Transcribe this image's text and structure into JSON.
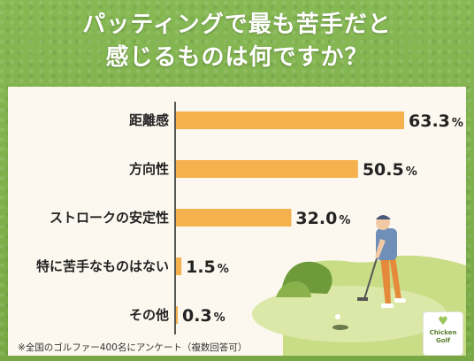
{
  "header": {
    "title_line1": "パッティングで最も苦手だと",
    "title_line2": "感じるものは何ですか？"
  },
  "footnote": "※全国のゴルファー400名にアンケート（複数回答可）",
  "logo": {
    "word1": "Chicken",
    "word2": "Golf",
    "glyph": "♥"
  },
  "colors": {
    "bar": "#f5b14d",
    "background": "#7fb04a",
    "panel": "#fdf8ef",
    "axis": "#222222"
  },
  "chart_data": {
    "type": "bar",
    "orientation": "horizontal",
    "categories": [
      "距離感",
      "方向性",
      "ストロークの安定性",
      "特に苦手なものはない",
      "その他"
    ],
    "values": [
      63.3,
      50.5,
      32.0,
      1.5,
      0.3
    ],
    "value_labels": [
      "63.3",
      "50.5",
      "32.0",
      "1.5",
      "0.3"
    ],
    "unit": "%",
    "xlim": [
      0,
      63.3
    ]
  }
}
